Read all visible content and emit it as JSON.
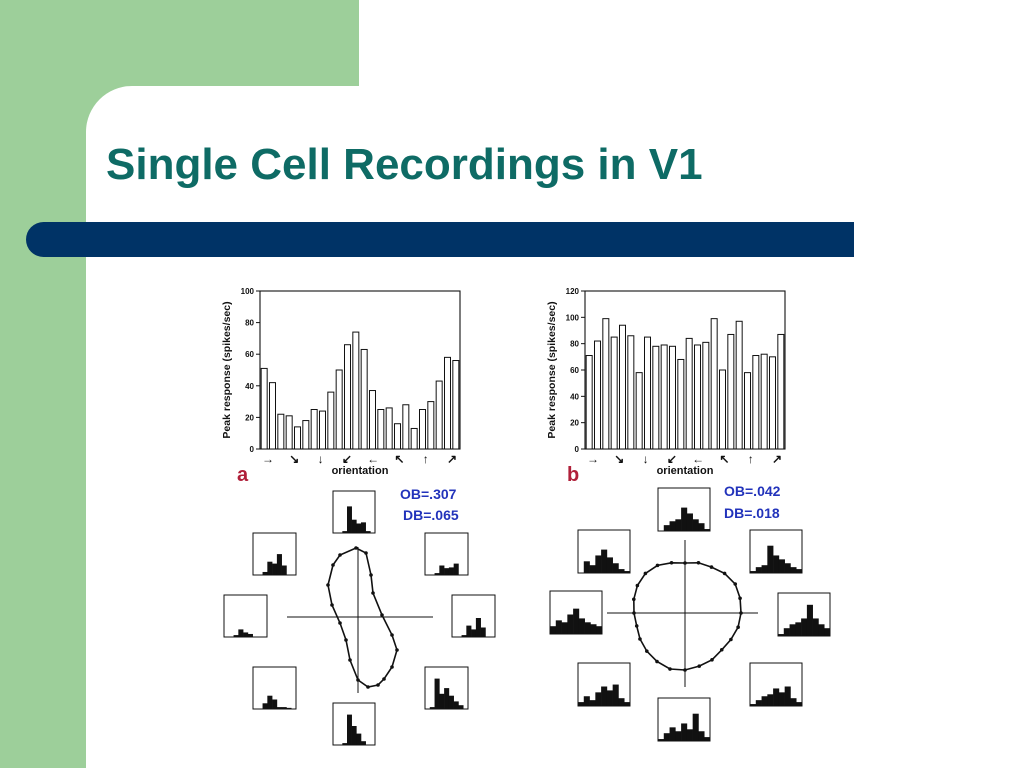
{
  "slide": {
    "title": "Single Cell Recordings in V1"
  },
  "colors": {
    "green_block": "#9dcf9a",
    "title_text": "#0e6b65",
    "title_bar": "#003366",
    "panel_letter": "#b0203a",
    "index_text": "#2233bb"
  },
  "figure": {
    "orientation_ticks": [
      "→",
      "↘",
      "↓",
      "↙",
      "←",
      "↖",
      "↑",
      "↗"
    ],
    "panels": [
      {
        "letter": "a",
        "ylabel": "Peak response (spikes/sec)",
        "xlabel": "orientation",
        "yticks": [
          "100",
          "80",
          "60",
          "40",
          "20",
          "0"
        ],
        "ymax": 100,
        "values": [
          51,
          42,
          22,
          21,
          14,
          18,
          25,
          24,
          36,
          50,
          66,
          74,
          63,
          37,
          25,
          26,
          16,
          28,
          13,
          25,
          30,
          43,
          58,
          56
        ],
        "ob": "OB=.307",
        "db": "DB=.065"
      },
      {
        "letter": "b",
        "ylabel": "Peak response (spikes/sec)",
        "xlabel": "orientation",
        "yticks": [
          "120",
          "100",
          "80",
          "60",
          "40",
          "20",
          "0"
        ],
        "ymax": 120,
        "values": [
          71,
          82,
          99,
          85,
          94,
          86,
          58,
          85,
          78,
          79,
          78,
          68,
          84,
          79,
          81,
          99,
          60,
          87,
          97,
          58,
          71,
          72,
          70,
          87
        ],
        "ob": "OB=.042",
        "db": "DB=.018"
      }
    ]
  }
}
